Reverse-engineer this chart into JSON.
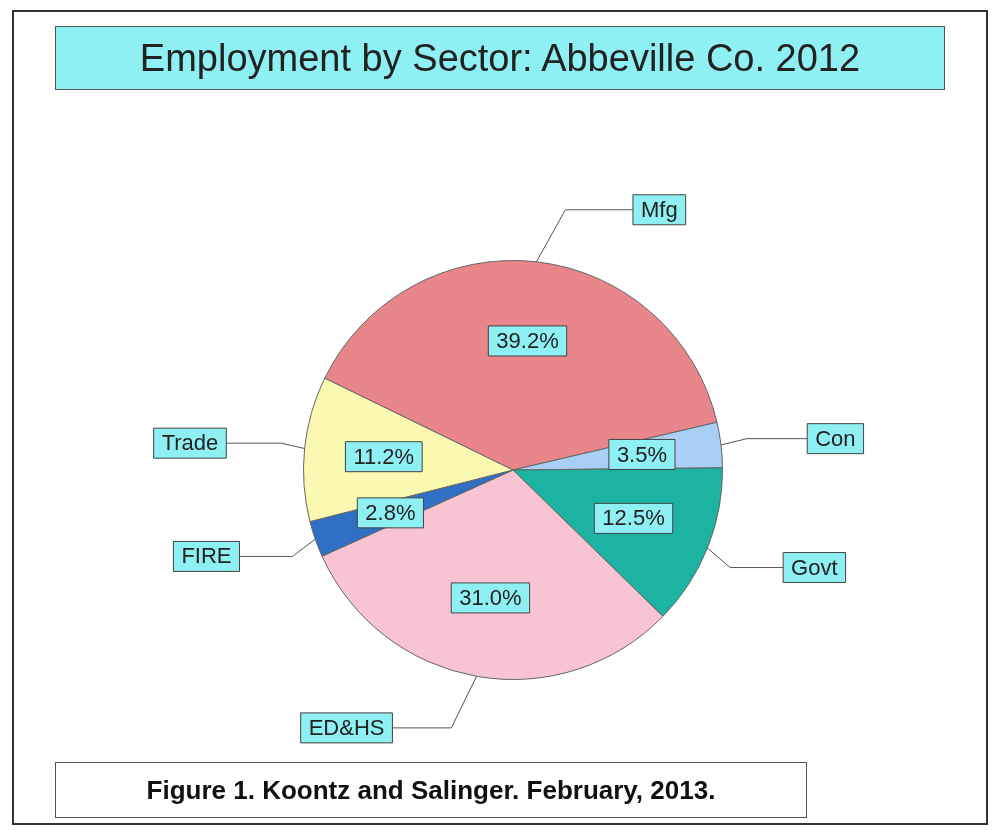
{
  "chart_data": {
    "type": "pie",
    "title": "Employment by Sector: Abbeville Co. 2012",
    "categories": [
      "Mfg",
      "Con",
      "Govt",
      "ED&HS",
      "FIRE",
      "Trade"
    ],
    "values": [
      39.2,
      3.5,
      12.5,
      31.0,
      2.8,
      11.2
    ],
    "value_labels": [
      "39.2%",
      "3.5%",
      "12.5%",
      "31.0%",
      "2.8%",
      "11.2%"
    ],
    "colors": [
      "#e8868c",
      "#a9cff5",
      "#1db3a3",
      "#f8c4d3",
      "#2f6fc4",
      "#fbf8b2"
    ],
    "annotations": [
      "Figure 1.  Koontz and Salinger.  February, 2013."
    ],
    "legend": false
  }
}
